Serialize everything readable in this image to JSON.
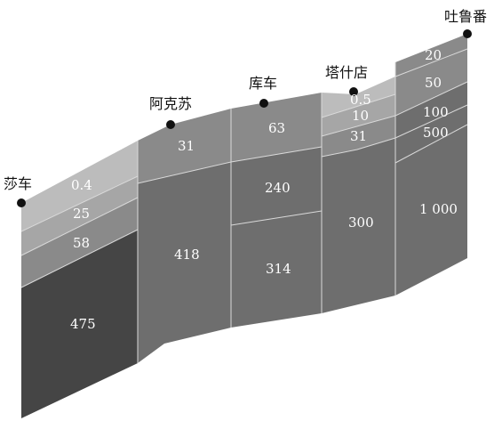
{
  "colors": {
    "layer_lightest": "#bcbcbc",
    "layer_light": "#a6a6a6",
    "layer_mid": "#8a8a8a",
    "layer_dark": "#6e6e6e",
    "layer_darkest": "#454545",
    "divider": "#d9d9d9",
    "marker": "#111111",
    "label_text": "#ffffff"
  },
  "stations": [
    {
      "name": "莎车",
      "segments": [
        "0.4",
        "25",
        "58",
        "475"
      ]
    },
    {
      "name": "阿克苏",
      "segments": [
        "31",
        "418"
      ]
    },
    {
      "name": "库车",
      "segments": [
        "63",
        "240",
        "314"
      ]
    },
    {
      "name": "塔什店",
      "segments": [
        "0.5",
        "10",
        "31",
        "300"
      ]
    },
    {
      "name": "吐鲁番",
      "segments": [
        "20",
        "50",
        "100",
        "500",
        "1 000"
      ]
    }
  ]
}
